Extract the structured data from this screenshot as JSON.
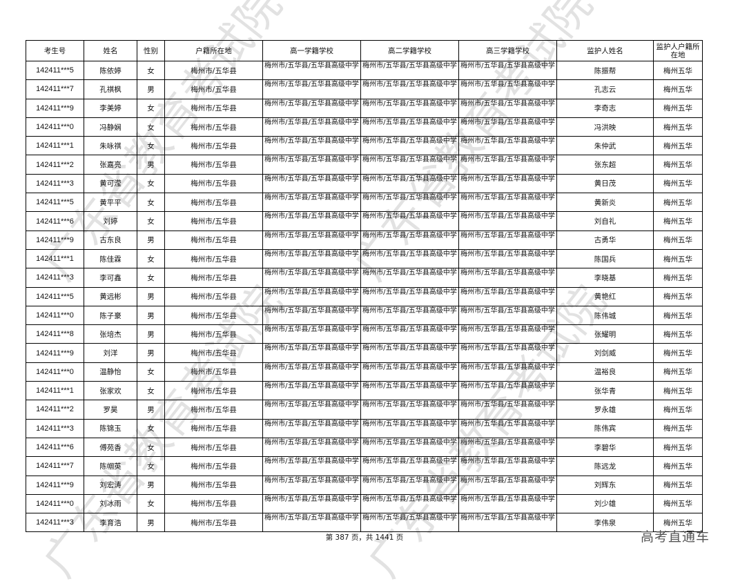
{
  "table": {
    "headers": [
      "考生号",
      "姓名",
      "性别",
      "户籍所在地",
      "高一学籍学校",
      "高二学籍学校",
      "高三学籍学校",
      "监护人姓名",
      "监护人户籍所在地"
    ],
    "rows": [
      [
        "142411***5",
        "陈依婷",
        "女",
        "梅州市/五华县",
        "梅州市/五华县/五华县高级中学",
        "梅州市/五华县/五华县高级中学",
        "梅州市/五华县/五华县高级中学",
        "陈振帮",
        "梅州五华"
      ],
      [
        "142411***7",
        "孔祺枫",
        "男",
        "梅州市/五华县",
        "梅州市/五华县/五华县高级中学",
        "梅州市/五华县/五华县高级中学",
        "梅州市/五华县/五华县高级中学",
        "孔志云",
        "梅州五华"
      ],
      [
        "142411***9",
        "李美婷",
        "女",
        "梅州市/五华县",
        "梅州市/五华县/五华县高级中学",
        "梅州市/五华县/五华县高级中学",
        "梅州市/五华县/五华县高级中学",
        "李奇志",
        "梅州五华"
      ],
      [
        "142411***0",
        "冯静娴",
        "女",
        "梅州市/五华县",
        "梅州市/五华县/五华县高级中学",
        "梅州市/五华县/五华县高级中学",
        "梅州市/五华县/五华县高级中学",
        "冯洪映",
        "梅州五华"
      ],
      [
        "142411***1",
        "朱咏祺",
        "女",
        "梅州市/五华县",
        "梅州市/五华县/五华县高级中学",
        "梅州市/五华县/五华县高级中学",
        "梅州市/五华县/五华县高级中学",
        "朱仲武",
        "梅州五华"
      ],
      [
        "142411***2",
        "张嘉亮",
        "男",
        "梅州市/五华县",
        "梅州市/五华县/五华县高级中学",
        "梅州市/五华县/五华县高级中学",
        "梅州市/五华县/五华县高级中学",
        "张东超",
        "梅州五华"
      ],
      [
        "142411***3",
        "黄可滢",
        "女",
        "梅州市/五华县",
        "梅州市/五华县/五华县高级中学",
        "梅州市/五华县/五华县高级中学",
        "梅州市/五华县/五华县高级中学",
        "黄日茂",
        "梅州五华"
      ],
      [
        "142411***5",
        "黄平平",
        "女",
        "梅州市/五华县",
        "梅州市/五华县/五华县高级中学",
        "梅州市/五华县/五华县高级中学",
        "梅州市/五华县/五华县高级中学",
        "黄新炎",
        "梅州五华"
      ],
      [
        "142411***6",
        "刘婷",
        "女",
        "梅州市/五华县",
        "梅州市/五华县/五华县高级中学",
        "梅州市/五华县/五华县高级中学",
        "梅州市/五华县/五华县高级中学",
        "刘自礼",
        "梅州五华"
      ],
      [
        "142411***9",
        "古东良",
        "男",
        "梅州市/五华县",
        "梅州市/五华县/五华县高级中学",
        "梅州市/五华县/五华县高级中学",
        "梅州市/五华县/五华县高级中学",
        "古勇华",
        "梅州五华"
      ],
      [
        "142411***1",
        "陈佳霖",
        "女",
        "梅州市/五华县",
        "梅州市/五华县/五华县高级中学",
        "梅州市/五华县/五华县高级中学",
        "梅州市/五华县/五华县高级中学",
        "陈国兵",
        "梅州五华"
      ],
      [
        "142411***3",
        "李可鑫",
        "女",
        "梅州市/五华县",
        "梅州市/五华县/五华县高级中学",
        "梅州市/五华县/五华县高级中学",
        "梅州市/五华县/五华县高级中学",
        "李晓基",
        "梅州五华"
      ],
      [
        "142411***5",
        "黄远彬",
        "男",
        "梅州市/五华县",
        "梅州市/五华县/五华县高级中学",
        "梅州市/五华县/五华县高级中学",
        "梅州市/五华县/五华县高级中学",
        "黄艳红",
        "梅州五华"
      ],
      [
        "142411***0",
        "陈子豪",
        "男",
        "梅州市/五华县",
        "梅州市/五华县/五华县高级中学",
        "梅州市/五华县/五华县高级中学",
        "梅州市/五华县/五华县高级中学",
        "陈伟城",
        "梅州五华"
      ],
      [
        "142411***8",
        "张培杰",
        "男",
        "梅州市/五华县",
        "梅州市/五华县/五华县高级中学",
        "梅州市/五华县/五华县高级中学",
        "梅州市/五华县/五华县高级中学",
        "张耀明",
        "梅州五华"
      ],
      [
        "142411***9",
        "刘洋",
        "男",
        "梅州市/五华县",
        "梅州市/五华县/五华县高级中学",
        "梅州市/五华县/五华县高级中学",
        "梅州市/五华县/五华县高级中学",
        "刘剑威",
        "梅州五华"
      ],
      [
        "142411***0",
        "温静怡",
        "女",
        "梅州市/五华县",
        "梅州市/五华县/五华县高级中学",
        "梅州市/五华县/五华县高级中学",
        "梅州市/五华县/五华县高级中学",
        "温裕良",
        "梅州五华"
      ],
      [
        "142411***1",
        "张家欢",
        "女",
        "梅州市/五华县",
        "梅州市/五华县/五华县高级中学",
        "梅州市/五华县/五华县高级中学",
        "梅州市/五华县/五华县高级中学",
        "张华青",
        "梅州五华"
      ],
      [
        "142411***2",
        "罗昊",
        "男",
        "梅州市/五华县",
        "梅州市/五华县/五华县高级中学",
        "梅州市/五华县/五华县高级中学",
        "梅州市/五华县/五华县高级中学",
        "罗永雄",
        "梅州五华"
      ],
      [
        "142411***3",
        "陈锦玉",
        "女",
        "梅州市/五华县",
        "梅州市/五华县/五华县高级中学",
        "梅州市/五华县/五华县高级中学",
        "梅州市/五华县/五华县高级中学",
        "陈伟宾",
        "梅州五华"
      ],
      [
        "142411***6",
        "傅苑香",
        "女",
        "梅州市/五华县",
        "梅州市/五华县/五华县高级中学",
        "梅州市/五华县/五华县高级中学",
        "梅州市/五华县/五华县高级中学",
        "李碧华",
        "梅州五华"
      ],
      [
        "142411***7",
        "陈帼英",
        "女",
        "梅州市/五华县",
        "梅州市/五华县/五华县高级中学",
        "梅州市/五华县/五华县高级中学",
        "梅州市/五华县/五华县高级中学",
        "陈远龙",
        "梅州五华"
      ],
      [
        "142411***9",
        "刘宏涛",
        "男",
        "梅州市/五华县",
        "梅州市/五华县/五华县高级中学",
        "梅州市/五华县/五华县高级中学",
        "梅州市/五华县/五华县高级中学",
        "刘辉东",
        "梅州五华"
      ],
      [
        "142411***0",
        "刘冰雨",
        "女",
        "梅州市/五华县",
        "梅州市/五华县/五华县高级中学",
        "梅州市/五华县/五华县高级中学",
        "梅州市/五华县/五华县高级中学",
        "刘少雄",
        "梅州五华"
      ],
      [
        "142411***3",
        "李育浩",
        "男",
        "梅州市/五华县",
        "梅州市/五华县/五华县高级中学",
        "梅州市/五华县/五华县高级中学",
        "梅州市/五华县/五华县高级中学",
        "李伟泉",
        "梅州五华"
      ]
    ]
  },
  "footer": {
    "page_text": "第 387 页，共 1441 页"
  },
  "watermark": "广东省教育考试院",
  "brand": "高考直通车"
}
